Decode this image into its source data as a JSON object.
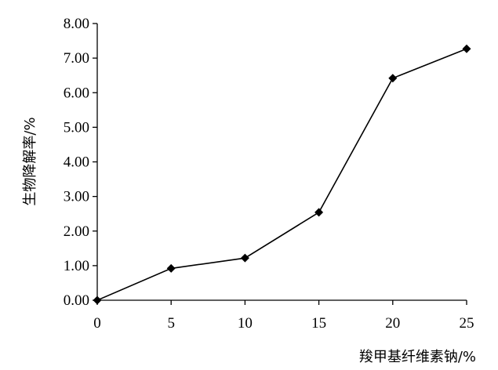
{
  "chart_data": {
    "type": "line",
    "title": "",
    "xlabel": "羧甲基纤维素钠/%",
    "ylabel": "生物降解率/%",
    "x": [
      0,
      5,
      10,
      15,
      20,
      25
    ],
    "xlim": [
      0,
      25
    ],
    "xticks": [
      "0",
      "5",
      "10",
      "15",
      "20",
      "25"
    ],
    "ylim": [
      0,
      8
    ],
    "yticks": [
      "0.00",
      "1.00",
      "2.00",
      "3.00",
      "4.00",
      "5.00",
      "6.00",
      "7.00",
      "8.00"
    ],
    "grid": false,
    "series": [
      {
        "values": [
          0.0,
          0.92,
          1.22,
          2.54,
          6.42,
          7.27
        ],
        "marker": "diamond",
        "color": "#000000"
      }
    ]
  }
}
